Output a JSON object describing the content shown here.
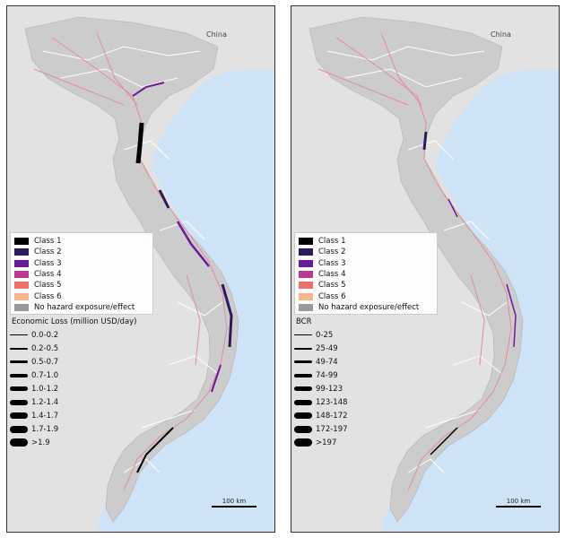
{
  "panels": [
    {
      "country_label": "China",
      "class_legend": [
        {
          "label": "Class 1",
          "color": "#000000"
        },
        {
          "label": "Class 2",
          "color": "#2b1b5c"
        },
        {
          "label": "Class 3",
          "color": "#6a1b9a"
        },
        {
          "label": "Class 4",
          "color": "#b93b8f"
        },
        {
          "label": "Class 5",
          "color": "#f0706a"
        },
        {
          "label": "Class 6",
          "color": "#f8b587"
        },
        {
          "label": "No hazard exposure/effect",
          "color": "#999999"
        }
      ],
      "width_legend_title": "Economic Loss (million USD/day)",
      "width_legend_items": [
        "0.0-0.2",
        "0.2-0.5",
        "0.5-0.7",
        "0.7-1.0",
        "1.0-1.2",
        "1.2-1.4",
        "1.4-1.7",
        "1.7-1.9",
        ">1.9"
      ],
      "scale_label": "100 km"
    },
    {
      "country_label": "China",
      "class_legend": [
        {
          "label": "Class 1",
          "color": "#000000"
        },
        {
          "label": "Class 2",
          "color": "#2b1b5c"
        },
        {
          "label": "Class 3",
          "color": "#6a1b9a"
        },
        {
          "label": "Class 4",
          "color": "#b93b8f"
        },
        {
          "label": "Class 5",
          "color": "#f0706a"
        },
        {
          "label": "Class 6",
          "color": "#f8b587"
        },
        {
          "label": "No hazard exposure/effect",
          "color": "#999999"
        }
      ],
      "width_legend_title": "BCR",
      "width_legend_items": [
        "0-25",
        "25-49",
        "49-74",
        "74-99",
        "99-123",
        "123-148",
        "148-172",
        "172-197",
        ">197"
      ],
      "scale_label": "100 km"
    }
  ],
  "colors": {
    "sea": "#cfe3f7",
    "land": "#e2e2e2",
    "vietnam": "#cccccc",
    "road_main": "#e58a9a",
    "road_minor": "#ffffff"
  }
}
